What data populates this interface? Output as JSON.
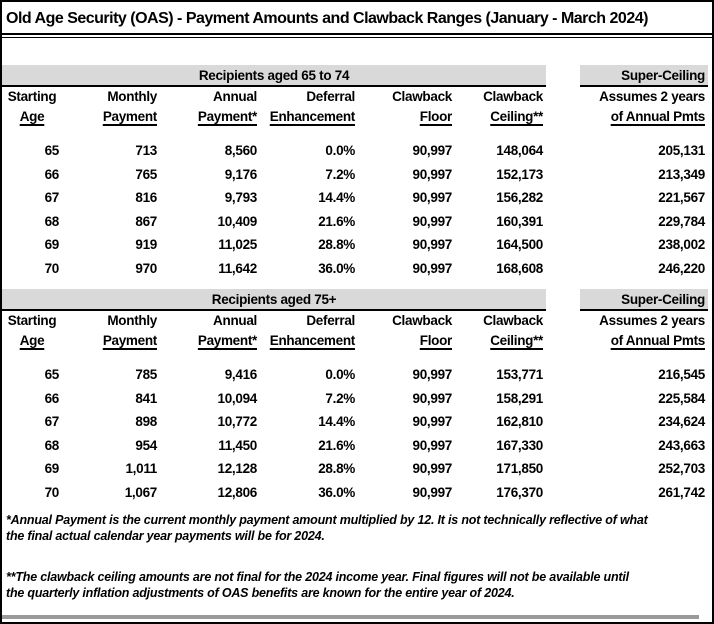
{
  "title": "Old Age Security (OAS) - Payment Amounts and Clawback Ranges (January - March 2024)",
  "columns": [
    {
      "line1": "Starting",
      "line2": "Age"
    },
    {
      "line1": "Monthly",
      "line2": "Payment"
    },
    {
      "line1": "Annual",
      "line2": "Payment*"
    },
    {
      "line1": "Deferral",
      "line2": "Enhancement"
    },
    {
      "line1": "Clawback",
      "line2": "Floor"
    },
    {
      "line1": "Clawback",
      "line2": "Ceiling**"
    }
  ],
  "super_column": {
    "band_label": "Super-Ceiling",
    "line1": "Assumes 2 years",
    "line2": "of Annual Pmts"
  },
  "tables": [
    {
      "section": "Recipients aged 65 to 74",
      "rows": [
        [
          "65",
          "713",
          "8,560",
          "0.0%",
          "90,997",
          "148,064",
          "205,131"
        ],
        [
          "66",
          "765",
          "9,176",
          "7.2%",
          "90,997",
          "152,173",
          "213,349"
        ],
        [
          "67",
          "816",
          "9,793",
          "14.4%",
          "90,997",
          "156,282",
          "221,567"
        ],
        [
          "68",
          "867",
          "10,409",
          "21.6%",
          "90,997",
          "160,391",
          "229,784"
        ],
        [
          "69",
          "919",
          "11,025",
          "28.8%",
          "90,997",
          "164,500",
          "238,002"
        ],
        [
          "70",
          "970",
          "11,642",
          "36.0%",
          "90,997",
          "168,608",
          "246,220"
        ]
      ]
    },
    {
      "section": "Recipients aged 75+",
      "rows": [
        [
          "65",
          "785",
          "9,416",
          "0.0%",
          "90,997",
          "153,771",
          "216,545"
        ],
        [
          "66",
          "841",
          "10,094",
          "7.2%",
          "90,997",
          "158,291",
          "225,584"
        ],
        [
          "67",
          "898",
          "10,772",
          "14.4%",
          "90,997",
          "162,810",
          "234,624"
        ],
        [
          "68",
          "954",
          "11,450",
          "21.6%",
          "90,997",
          "167,330",
          "243,663"
        ],
        [
          "69",
          "1,011",
          "12,128",
          "28.8%",
          "90,997",
          "171,850",
          "252,703"
        ],
        [
          "70",
          "1,067",
          "12,806",
          "36.0%",
          "90,997",
          "176,370",
          "261,742"
        ]
      ]
    }
  ],
  "footnotes": [
    {
      "lines": [
        "*Annual Payment is the current monthly payment amount multiplied by 12. It is not technically reflective of what",
        "the final actual calendar year payments will be for 2024."
      ]
    },
    {
      "lines": [
        "**The clawback ceiling amounts are not final for the 2024 income year. Final figures will not be available until",
        "the quarterly inflation adjustments of OAS benefits are known for the entire year of 2024."
      ]
    }
  ],
  "colors": {
    "header_band_gray": "#d9d9d9",
    "text_black": "#000000",
    "bottom_strip_gray": "#9a9a9a"
  }
}
